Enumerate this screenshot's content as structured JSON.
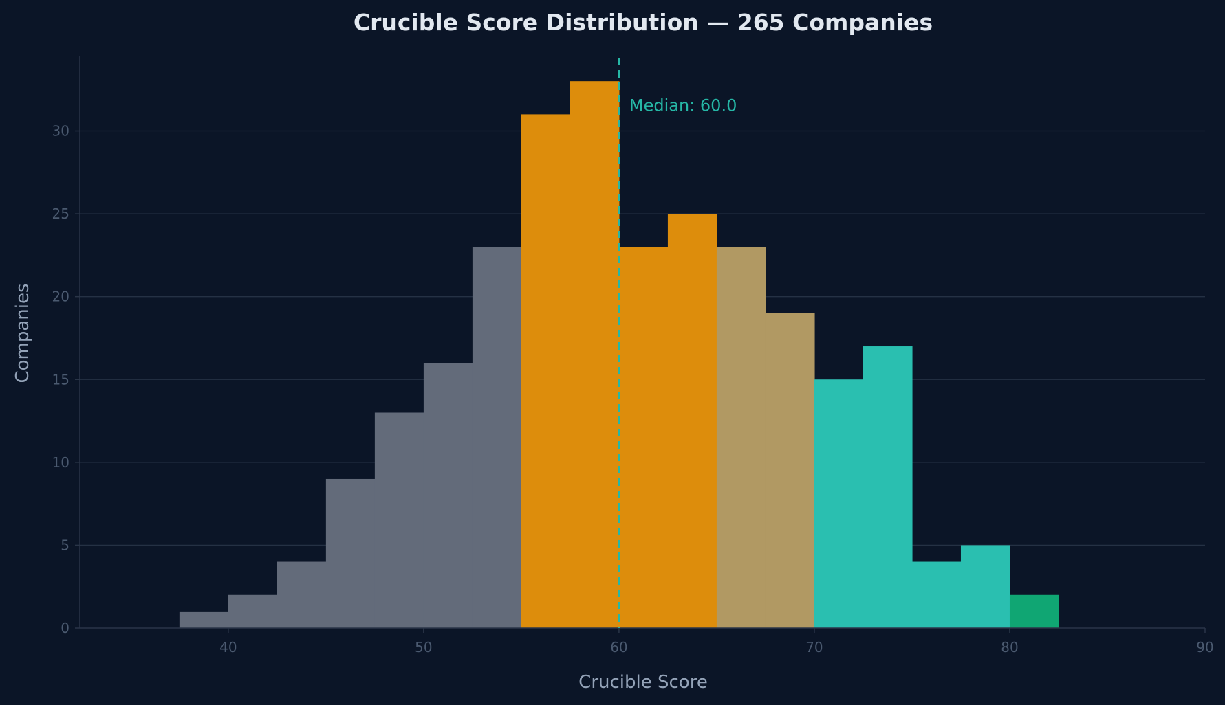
{
  "chart_data": {
    "type": "bar",
    "title": "Crucible Score Distribution — 265 Companies",
    "xlabel": "Crucible Score",
    "ylabel": "Companies",
    "xlim": [
      32.4,
      90
    ],
    "ylim": [
      0,
      34.5
    ],
    "xticks": [
      40,
      50,
      60,
      70,
      80,
      90
    ],
    "yticks": [
      0,
      5,
      10,
      15,
      20,
      25,
      30
    ],
    "grid": "horizontal",
    "bin_width": 2.5,
    "bins": [
      {
        "start": 37.5,
        "count": 1,
        "color": "#636b7a"
      },
      {
        "start": 40.0,
        "count": 2,
        "color": "#636b7a"
      },
      {
        "start": 42.5,
        "count": 4,
        "color": "#636b7a"
      },
      {
        "start": 45.0,
        "count": 9,
        "color": "#636b7a"
      },
      {
        "start": 47.5,
        "count": 13,
        "color": "#636b7a"
      },
      {
        "start": 50.0,
        "count": 16,
        "color": "#636b7a"
      },
      {
        "start": 52.5,
        "count": 23,
        "color": "#636b7a"
      },
      {
        "start": 55.0,
        "count": 31,
        "color": "#dd8d0c"
      },
      {
        "start": 57.5,
        "count": 33,
        "color": "#dd8d0c"
      },
      {
        "start": 60.0,
        "count": 23,
        "color": "#dd8d0c"
      },
      {
        "start": 62.5,
        "count": 25,
        "color": "#dd8d0c"
      },
      {
        "start": 65.0,
        "count": 23,
        "color": "#b19963"
      },
      {
        "start": 67.5,
        "count": 19,
        "color": "#b19963"
      },
      {
        "start": 70.0,
        "count": 15,
        "color": "#2abfb0"
      },
      {
        "start": 72.5,
        "count": 17,
        "color": "#2abfb0"
      },
      {
        "start": 75.0,
        "count": 4,
        "color": "#2abfb0"
      },
      {
        "start": 77.5,
        "count": 5,
        "color": "#2abfb0"
      },
      {
        "start": 80.0,
        "count": 2,
        "color": "#10a673"
      }
    ],
    "median": {
      "value": 60.0,
      "label": "Median: 60.0",
      "color": "#26b7a6"
    }
  },
  "colors": {
    "background": "#0b1527",
    "grid": "#253144",
    "axis": "#2a3548",
    "title": "#e2e8f0",
    "axis_label": "#94a3b8",
    "tick_label": "#4b5a70"
  }
}
